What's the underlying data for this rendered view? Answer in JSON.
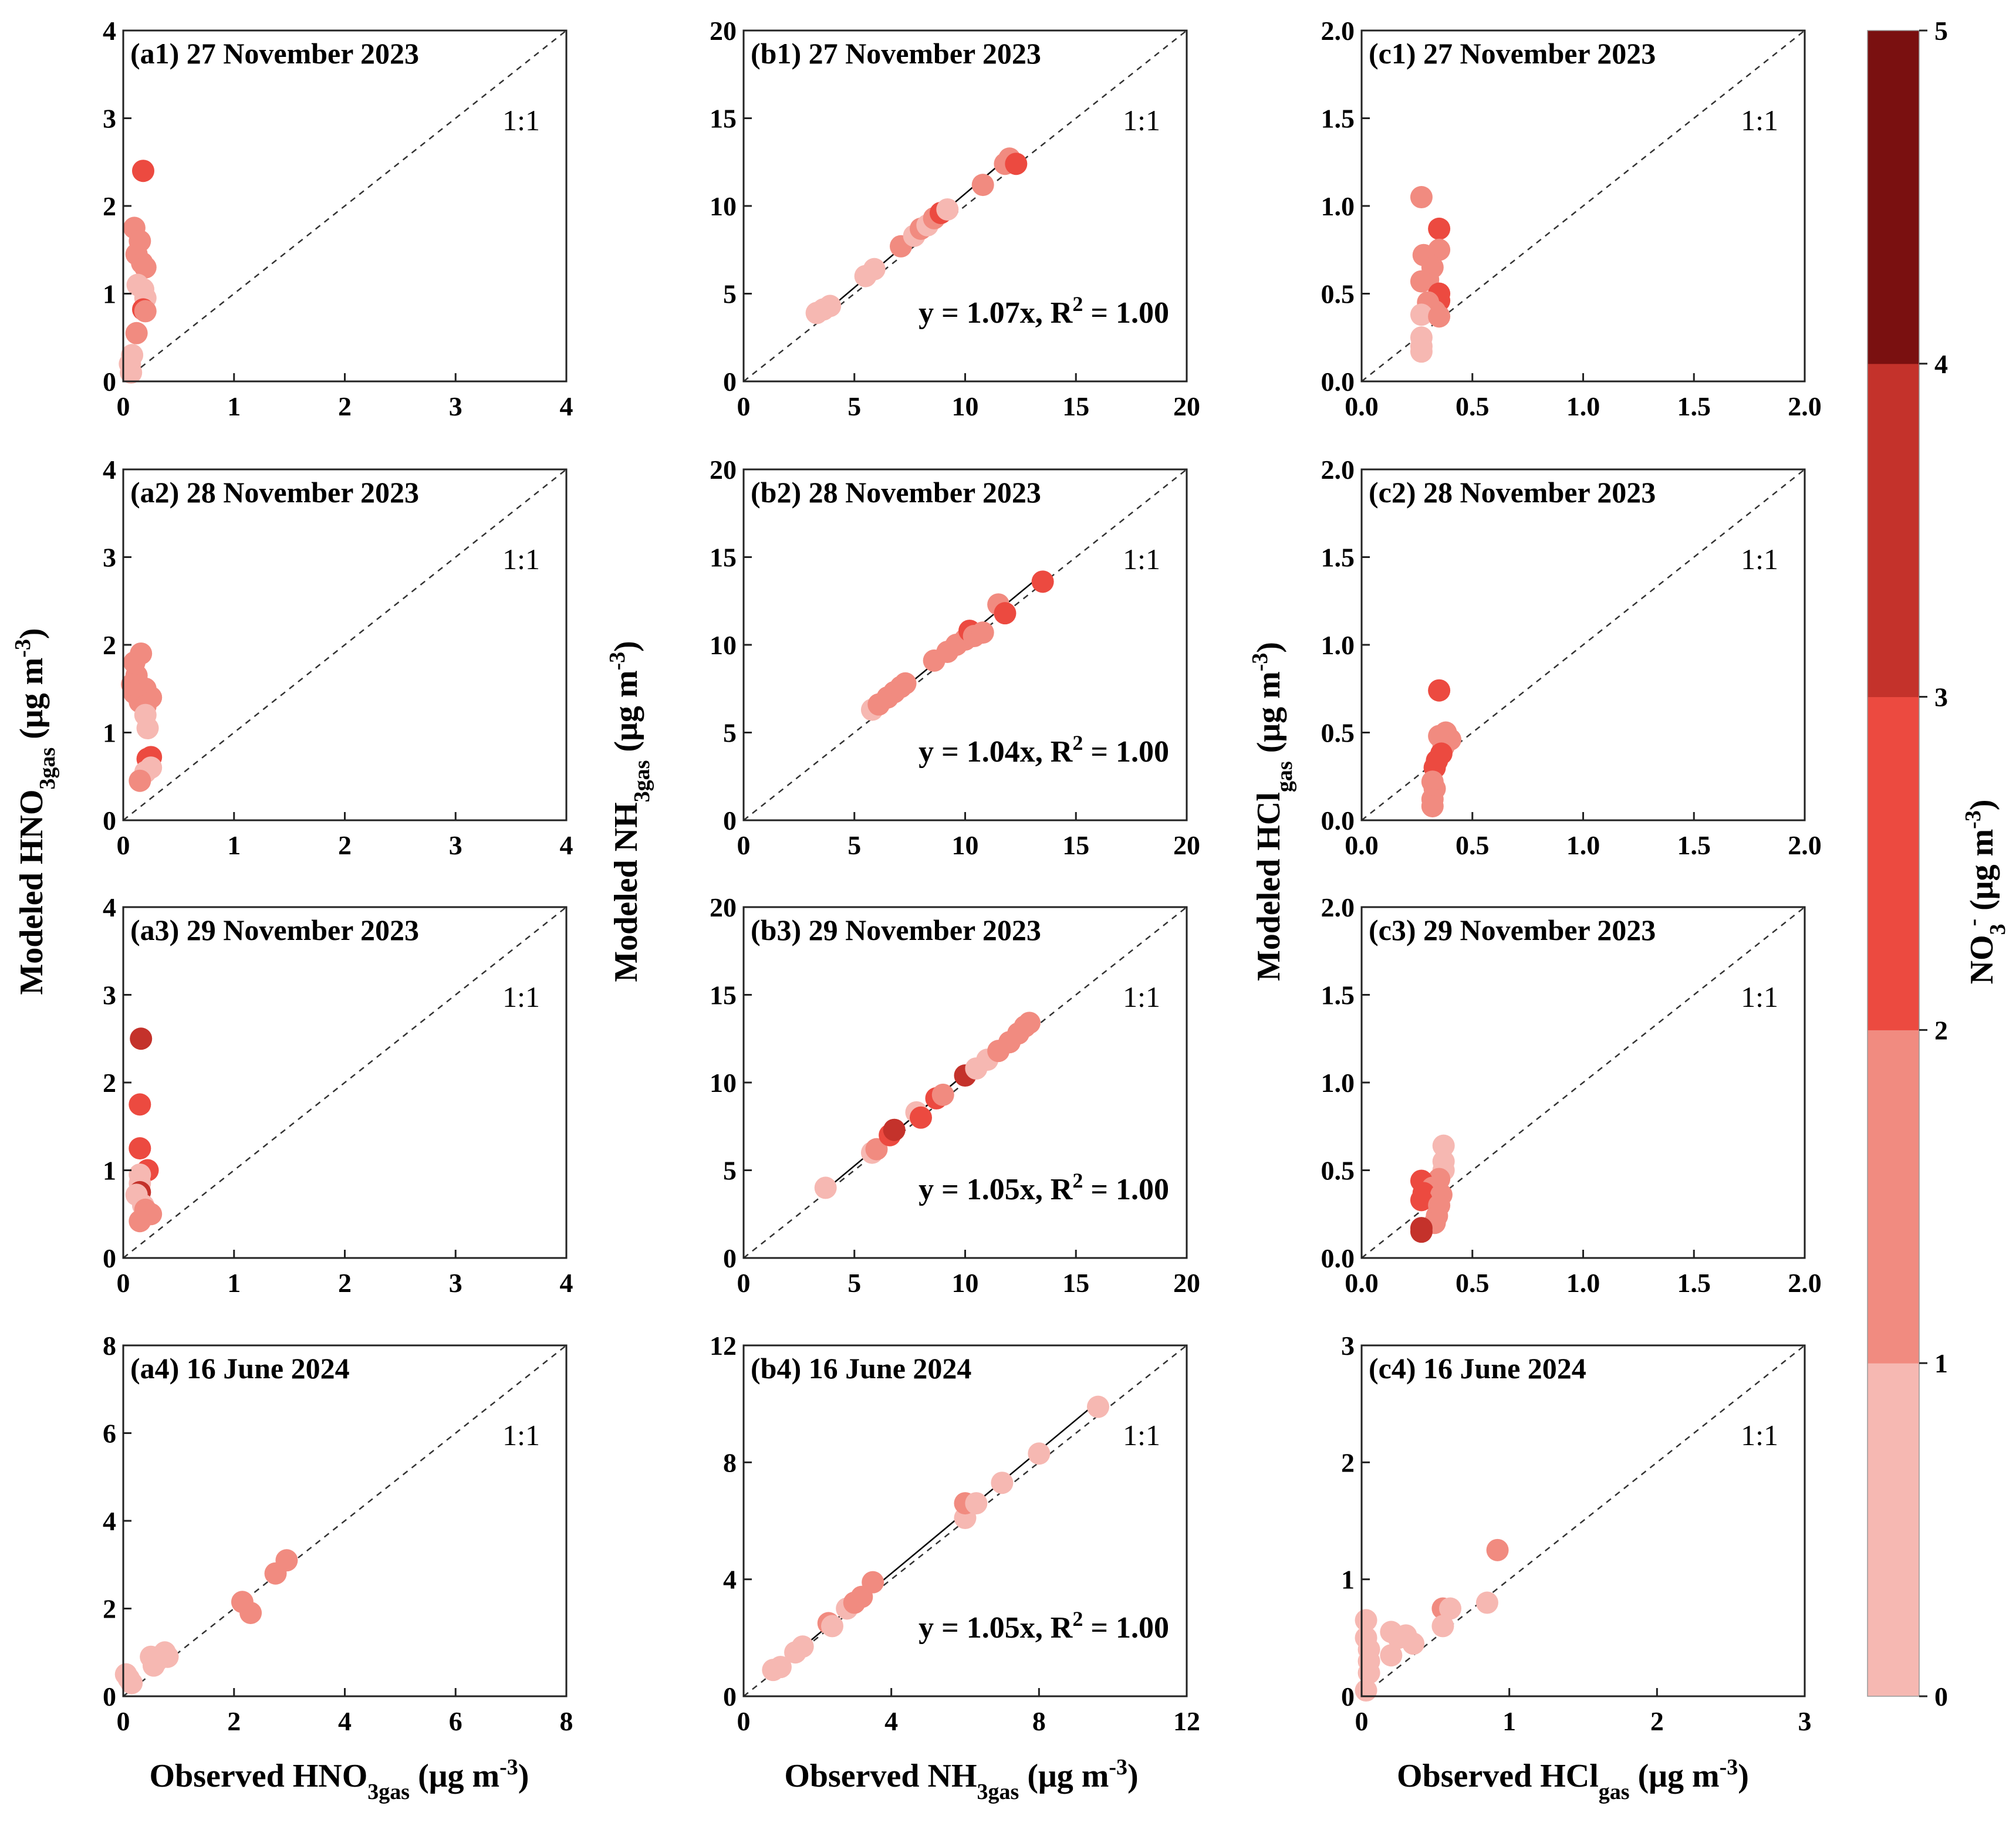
{
  "figure": {
    "y_labels": {
      "a": {
        "pre": "Modeled HNO",
        "sub": "3gas",
        "post": " (μg m",
        "sup": "-3",
        "end": ")"
      },
      "b": {
        "pre": "Modeled NH",
        "sub": "3gas",
        "post": " (μg m",
        "sup": "-3",
        "end": ")"
      },
      "c": {
        "pre": "Modeled HCl",
        "sub": "gas",
        "post": " (μg m",
        "sup": "-3",
        "end": ")"
      }
    },
    "x_labels": {
      "a": {
        "pre": "Observed HNO",
        "sub": "3gas",
        "post": " (μg m",
        "sup": "-3",
        "end": ")"
      },
      "b": {
        "pre": "Observed NH",
        "sub": "3gas",
        "post": " (μg m",
        "sup": "-3",
        "end": ")"
      },
      "c": {
        "pre": "Observed HCl",
        "sub": "gas",
        "post": " (μg m",
        "sup": "-3",
        "end": ")"
      }
    },
    "one_to_one_label": "1:1"
  },
  "colorbar": {
    "label": {
      "pre": "NO",
      "sub": "3",
      "sup": "-",
      "post": " (μg m",
      "sup2": "-3",
      "end": ")"
    },
    "ticks": [
      "0",
      "1",
      "2",
      "3",
      "4",
      "5"
    ],
    "colors": [
      "#f6b8b2",
      "#f18b80",
      "#ec4a40",
      "#c4322b",
      "#7a1010"
    ]
  },
  "chart_data": [
    {
      "id": "a1",
      "type": "scatter",
      "title": "(a1) 27 November 2023",
      "xlim": [
        0,
        4
      ],
      "ylim": [
        0,
        4
      ],
      "xticks": [
        "0",
        "1",
        "2",
        "3",
        "4"
      ],
      "yticks": [
        "0",
        "1",
        "2",
        "3",
        "4"
      ],
      "points": [
        [
          0.18,
          2.4,
          2
        ],
        [
          0.1,
          1.75,
          1
        ],
        [
          0.15,
          1.6,
          1
        ],
        [
          0.12,
          1.45,
          1
        ],
        [
          0.17,
          1.35,
          1
        ],
        [
          0.2,
          1.3,
          1
        ],
        [
          0.13,
          1.1,
          0
        ],
        [
          0.18,
          1.05,
          0
        ],
        [
          0.2,
          0.95,
          0
        ],
        [
          0.18,
          0.82,
          2
        ],
        [
          0.2,
          0.8,
          1
        ],
        [
          0.12,
          0.55,
          1
        ],
        [
          0.08,
          0.3,
          0
        ],
        [
          0.06,
          0.2,
          0
        ],
        [
          0.07,
          0.1,
          0
        ]
      ]
    },
    {
      "id": "b1",
      "type": "scatter",
      "title": "(b1) 27 November 2023",
      "xlim": [
        0,
        20
      ],
      "ylim": [
        0,
        20
      ],
      "xticks": [
        "0",
        "5",
        "10",
        "15",
        "20"
      ],
      "yticks": [
        "0",
        "5",
        "10",
        "15",
        "20"
      ],
      "equation": {
        "pre": "y = 1.07x, R",
        "sup": "2",
        "post": " = 1.00"
      },
      "fit": {
        "slope": 1.07,
        "x": [
          3.3,
          12.3
        ]
      },
      "points": [
        [
          3.3,
          3.9,
          0
        ],
        [
          3.6,
          4.1,
          0
        ],
        [
          3.9,
          4.3,
          0
        ],
        [
          5.5,
          6.0,
          0
        ],
        [
          5.9,
          6.4,
          0
        ],
        [
          7.1,
          7.7,
          1
        ],
        [
          7.7,
          8.3,
          0
        ],
        [
          8.0,
          8.7,
          1
        ],
        [
          8.3,
          8.9,
          0
        ],
        [
          8.6,
          9.3,
          1
        ],
        [
          8.9,
          9.6,
          2
        ],
        [
          9.2,
          9.8,
          0
        ],
        [
          10.8,
          11.2,
          1
        ],
        [
          11.8,
          12.4,
          1
        ],
        [
          12.0,
          12.7,
          1
        ],
        [
          12.3,
          12.4,
          2
        ]
      ]
    },
    {
      "id": "c1",
      "type": "scatter",
      "title": "(c1) 27 November 2023",
      "xlim": [
        0,
        2
      ],
      "ylim": [
        0,
        2
      ],
      "xticks": [
        "0.0",
        "0.5",
        "1.0",
        "1.5",
        "2.0"
      ],
      "yticks": [
        "0.0",
        "0.5",
        "1.0",
        "1.5",
        "2.0"
      ],
      "points": [
        [
          0.27,
          1.05,
          1
        ],
        [
          0.35,
          0.87,
          2
        ],
        [
          0.35,
          0.75,
          1
        ],
        [
          0.28,
          0.72,
          1
        ],
        [
          0.32,
          0.65,
          1
        ],
        [
          0.3,
          0.58,
          1
        ],
        [
          0.27,
          0.57,
          1
        ],
        [
          0.35,
          0.5,
          2
        ],
        [
          0.35,
          0.46,
          2
        ],
        [
          0.3,
          0.45,
          1
        ],
        [
          0.33,
          0.4,
          1
        ],
        [
          0.27,
          0.38,
          0
        ],
        [
          0.35,
          0.37,
          1
        ],
        [
          0.27,
          0.25,
          0
        ],
        [
          0.27,
          0.2,
          0
        ],
        [
          0.27,
          0.17,
          0
        ]
      ]
    },
    {
      "id": "a2",
      "type": "scatter",
      "title": "(a2) 28 November 2023",
      "xlim": [
        0,
        4
      ],
      "ylim": [
        0,
        4
      ],
      "xticks": [
        "0",
        "1",
        "2",
        "3",
        "4"
      ],
      "yticks": [
        "0",
        "1",
        "2",
        "3",
        "4"
      ],
      "points": [
        [
          0.16,
          1.9,
          1
        ],
        [
          0.1,
          1.8,
          1
        ],
        [
          0.12,
          1.65,
          1
        ],
        [
          0.08,
          1.55,
          1
        ],
        [
          0.2,
          1.5,
          1
        ],
        [
          0.1,
          1.45,
          1
        ],
        [
          0.25,
          1.4,
          1
        ],
        [
          0.15,
          1.35,
          1
        ],
        [
          0.2,
          1.3,
          1
        ],
        [
          0.2,
          1.2,
          0
        ],
        [
          0.22,
          1.05,
          0
        ],
        [
          0.25,
          0.72,
          2
        ],
        [
          0.22,
          0.7,
          2
        ],
        [
          0.25,
          0.6,
          0
        ],
        [
          0.2,
          0.55,
          0
        ],
        [
          0.15,
          0.45,
          1
        ]
      ]
    },
    {
      "id": "b2",
      "type": "scatter",
      "title": "(b2) 28 November 2023",
      "xlim": [
        0,
        20
      ],
      "ylim": [
        0,
        20
      ],
      "xticks": [
        "0",
        "5",
        "10",
        "15",
        "20"
      ],
      "yticks": [
        "0",
        "5",
        "10",
        "15",
        "20"
      ],
      "equation": {
        "pre": "y = 1.04x, R",
        "sup": "2",
        "post": " = 1.00"
      },
      "fit": {
        "slope": 1.04,
        "x": [
          5.8,
          13.5
        ]
      },
      "points": [
        [
          5.8,
          6.3,
          0
        ],
        [
          6.1,
          6.6,
          1
        ],
        [
          6.5,
          7.0,
          1
        ],
        [
          6.8,
          7.3,
          1
        ],
        [
          7.1,
          7.6,
          1
        ],
        [
          7.3,
          7.8,
          1
        ],
        [
          8.6,
          9.1,
          1
        ],
        [
          9.2,
          9.6,
          1
        ],
        [
          9.6,
          10.0,
          1
        ],
        [
          10.0,
          10.3,
          1
        ],
        [
          10.2,
          10.8,
          2
        ],
        [
          10.4,
          10.5,
          1
        ],
        [
          10.8,
          10.7,
          1
        ],
        [
          11.5,
          12.3,
          1
        ],
        [
          11.8,
          11.8,
          2
        ],
        [
          13.5,
          13.6,
          2
        ]
      ]
    },
    {
      "id": "c2",
      "type": "scatter",
      "title": "(c2) 28 November 2023",
      "xlim": [
        0,
        2
      ],
      "ylim": [
        0,
        2
      ],
      "xticks": [
        "0.0",
        "0.5",
        "1.0",
        "1.5",
        "2.0"
      ],
      "yticks": [
        "0.0",
        "0.5",
        "1.0",
        "1.5",
        "2.0"
      ],
      "points": [
        [
          0.35,
          0.74,
          2
        ],
        [
          0.38,
          0.5,
          1
        ],
        [
          0.35,
          0.48,
          1
        ],
        [
          0.4,
          0.46,
          1
        ],
        [
          0.37,
          0.42,
          1
        ],
        [
          0.36,
          0.38,
          2
        ],
        [
          0.34,
          0.34,
          2
        ],
        [
          0.33,
          0.3,
          2
        ],
        [
          0.32,
          0.22,
          1
        ],
        [
          0.33,
          0.18,
          1
        ],
        [
          0.32,
          0.12,
          1
        ],
        [
          0.32,
          0.08,
          1
        ]
      ]
    },
    {
      "id": "a3",
      "type": "scatter",
      "title": "(a3) 29 November 2023",
      "xlim": [
        0,
        4
      ],
      "ylim": [
        0,
        4
      ],
      "xticks": [
        "0",
        "1",
        "2",
        "3",
        "4"
      ],
      "yticks": [
        "0",
        "1",
        "2",
        "3",
        "4"
      ],
      "points": [
        [
          0.16,
          2.5,
          3
        ],
        [
          0.15,
          1.75,
          2
        ],
        [
          0.15,
          1.25,
          2
        ],
        [
          0.22,
          1.0,
          2
        ],
        [
          0.15,
          0.95,
          0
        ],
        [
          0.15,
          0.85,
          0
        ],
        [
          0.15,
          0.75,
          3
        ],
        [
          0.12,
          0.72,
          0
        ],
        [
          0.18,
          0.6,
          0
        ],
        [
          0.2,
          0.55,
          1
        ],
        [
          0.25,
          0.5,
          1
        ],
        [
          0.15,
          0.42,
          1
        ]
      ]
    },
    {
      "id": "b3",
      "type": "scatter",
      "title": "(b3) 29 November 2023",
      "xlim": [
        0,
        20
      ],
      "ylim": [
        0,
        20
      ],
      "xticks": [
        "0",
        "5",
        "10",
        "15",
        "20"
      ],
      "yticks": [
        "0",
        "5",
        "10",
        "15",
        "20"
      ],
      "equation": {
        "pre": "y = 1.05x, R",
        "sup": "2",
        "post": " = 1.00"
      },
      "fit": {
        "slope": 1.05,
        "x": [
          3.7,
          13.0
        ]
      },
      "points": [
        [
          3.7,
          4.0,
          0
        ],
        [
          5.8,
          6.0,
          0
        ],
        [
          6.0,
          6.2,
          1
        ],
        [
          6.6,
          7.0,
          2
        ],
        [
          6.8,
          7.3,
          3
        ],
        [
          7.8,
          8.3,
          0
        ],
        [
          8.0,
          8.0,
          2
        ],
        [
          8.7,
          9.1,
          2
        ],
        [
          9.0,
          9.3,
          1
        ],
        [
          10.0,
          10.4,
          3
        ],
        [
          10.5,
          10.8,
          0
        ],
        [
          11.0,
          11.3,
          0
        ],
        [
          11.5,
          11.8,
          1
        ],
        [
          12.0,
          12.3,
          1
        ],
        [
          12.4,
          12.8,
          1
        ],
        [
          12.7,
          13.2,
          1
        ],
        [
          12.9,
          13.4,
          1
        ]
      ]
    },
    {
      "id": "c3",
      "type": "scatter",
      "title": "(c3) 29 November 2023",
      "xlim": [
        0,
        2
      ],
      "ylim": [
        0,
        2
      ],
      "xticks": [
        "0.0",
        "0.5",
        "1.0",
        "1.5",
        "2.0"
      ],
      "yticks": [
        "0.0",
        "0.5",
        "1.0",
        "1.5",
        "2.0"
      ],
      "points": [
        [
          0.37,
          0.64,
          0
        ],
        [
          0.37,
          0.55,
          0
        ],
        [
          0.37,
          0.5,
          0
        ],
        [
          0.35,
          0.45,
          1
        ],
        [
          0.27,
          0.44,
          2
        ],
        [
          0.32,
          0.4,
          1
        ],
        [
          0.28,
          0.37,
          2
        ],
        [
          0.36,
          0.36,
          1
        ],
        [
          0.27,
          0.33,
          2
        ],
        [
          0.35,
          0.3,
          1
        ],
        [
          0.34,
          0.24,
          1
        ],
        [
          0.33,
          0.2,
          1
        ],
        [
          0.27,
          0.17,
          3
        ],
        [
          0.27,
          0.15,
          3
        ]
      ]
    },
    {
      "id": "a4",
      "type": "scatter",
      "title": "(a4) 16 June 2024",
      "xlim": [
        0,
        8
      ],
      "ylim": [
        0,
        8
      ],
      "xticks": [
        "0",
        "2",
        "4",
        "6",
        "8"
      ],
      "yticks": [
        "0",
        "2",
        "4",
        "6",
        "8"
      ],
      "points": [
        [
          0.05,
          0.5,
          0
        ],
        [
          0.1,
          0.4,
          0
        ],
        [
          0.15,
          0.3,
          0
        ],
        [
          0.5,
          0.9,
          0
        ],
        [
          0.6,
          0.8,
          0
        ],
        [
          0.75,
          1.0,
          0
        ],
        [
          0.8,
          0.9,
          0
        ],
        [
          0.55,
          0.7,
          0
        ],
        [
          2.15,
          2.15,
          1
        ],
        [
          2.3,
          1.9,
          1
        ],
        [
          2.75,
          2.8,
          1
        ],
        [
          2.95,
          3.1,
          1
        ]
      ]
    },
    {
      "id": "b4",
      "type": "scatter",
      "title": "(b4) 16 June 2024",
      "xlim": [
        0,
        12
      ],
      "ylim": [
        0,
        12
      ],
      "xticks": [
        "0",
        "4",
        "8",
        "12"
      ],
      "yticks": [
        "0",
        "4",
        "8",
        "12"
      ],
      "equation": {
        "pre": "y = 1.05x, R",
        "sup": "2",
        "post": " = 1.00"
      },
      "fit": {
        "slope": 1.05,
        "x": [
          0.8,
          9.6
        ]
      },
      "points": [
        [
          0.8,
          0.9,
          0
        ],
        [
          1.0,
          1.0,
          0
        ],
        [
          1.4,
          1.5,
          0
        ],
        [
          1.6,
          1.7,
          0
        ],
        [
          2.3,
          2.5,
          1
        ],
        [
          2.4,
          2.4,
          0
        ],
        [
          2.8,
          3.0,
          0
        ],
        [
          3.0,
          3.2,
          1
        ],
        [
          3.2,
          3.4,
          1
        ],
        [
          3.5,
          3.9,
          1
        ],
        [
          6.0,
          6.1,
          0
        ],
        [
          6.0,
          6.6,
          1
        ],
        [
          6.3,
          6.6,
          0
        ],
        [
          7.0,
          7.3,
          0
        ],
        [
          8.0,
          8.3,
          0
        ],
        [
          9.6,
          9.9,
          0
        ]
      ]
    },
    {
      "id": "c4",
      "type": "scatter",
      "title": "(c4) 16 June 2024",
      "xlim": [
        0,
        3
      ],
      "ylim": [
        0,
        3
      ],
      "xticks": [
        "0",
        "1",
        "2",
        "3"
      ],
      "yticks": [
        "0",
        "1",
        "2",
        "3"
      ],
      "points": [
        [
          0.03,
          0.65,
          0
        ],
        [
          0.03,
          0.5,
          0
        ],
        [
          0.05,
          0.4,
          0
        ],
        [
          0.05,
          0.3,
          0
        ],
        [
          0.05,
          0.2,
          0
        ],
        [
          0.03,
          0.05,
          0
        ],
        [
          0.2,
          0.55,
          0
        ],
        [
          0.25,
          0.5,
          0
        ],
        [
          0.3,
          0.52,
          0
        ],
        [
          0.35,
          0.45,
          0
        ],
        [
          0.2,
          0.35,
          0
        ],
        [
          0.55,
          0.75,
          1
        ],
        [
          0.55,
          0.6,
          0
        ],
        [
          0.6,
          0.75,
          0
        ],
        [
          0.85,
          0.8,
          0
        ],
        [
          0.92,
          1.25,
          1
        ]
      ]
    }
  ]
}
